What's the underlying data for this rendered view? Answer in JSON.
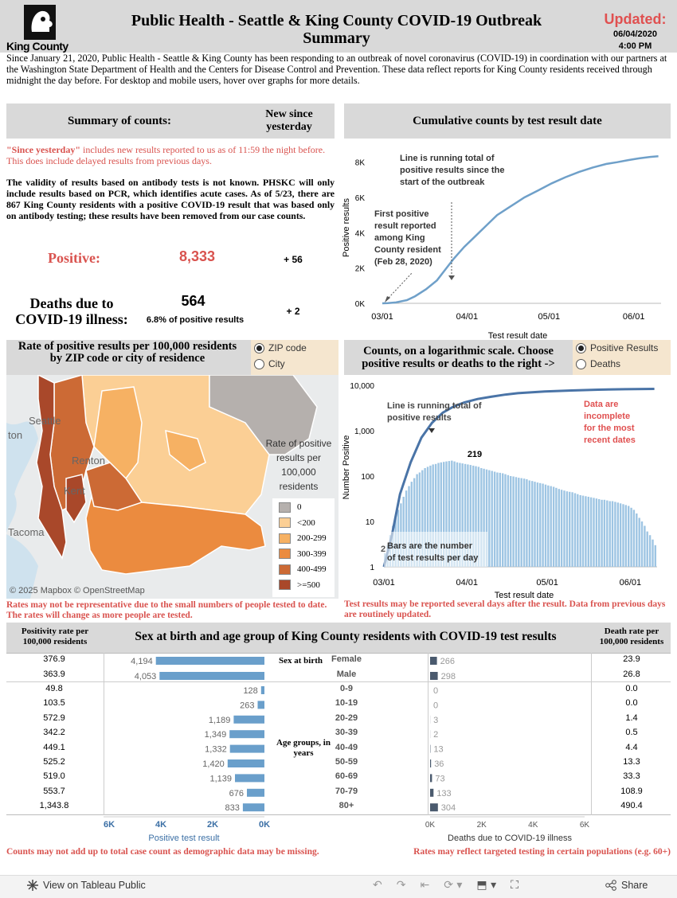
{
  "header": {
    "logo_text": "King County",
    "title": "Public Health - Seattle & King County COVID-19 Outbreak Summary",
    "updated_label": "Updated:",
    "updated_date": "06/04/2020",
    "updated_time": "4:00 PM",
    "intro": "Since January 21, 2020, Public Health - Seattle & King County has been responding to an outbreak of novel coronavirus (COVID-19) in coordination with our partners at the Washington State Department of Health and the Centers for Disease Control and Prevention. These data reflect reports for King County residents received through midnight the day before. For desktop and mobile users, hover over graphs for more details."
  },
  "summary": {
    "title": "Summary of counts:",
    "new_since": "New since yesterday",
    "note_red": "\"Since yesterday\" includes new results reported to us as of 11:59 the night before. This does include delayed results from previous days.",
    "note_red_bold": "\"Since yesterday\"",
    "note_red_rest": " includes new results reported to us as of 11:59 the night before. This does include delayed results from previous days.",
    "note_bold": "The validity of results based on antibody tests is not known. PHSKC will only include results based on PCR, which identifies acute cases. As of 5/23, there are 867 King County residents with a positive COVID-19 result that was based only on antibody testing; these results have been removed from our case counts.",
    "positive_label": "Positive:",
    "positive_value": "8,333",
    "positive_new": "+ 56",
    "deaths_label": "Deaths due to COVID-19 illness:",
    "deaths_value": "564",
    "deaths_pct": "6.8% of positive results",
    "deaths_new": "+ 2"
  },
  "cumulative": {
    "title": "Cumulative counts by test result date",
    "annotation1": "Line is running total of positive results since the start of the outbreak",
    "annotation2": "First positive result reported among King County resident (Feb 28, 2020)"
  },
  "map": {
    "title": "Rate of positive results per 100,000 residents by ZIP code or city of residence",
    "radio_zip": "ZIP code",
    "radio_city": "City",
    "legend_title": "Rate of positive results per 100,000 residents",
    "legend": [
      {
        "label": "0",
        "color": "#b5b0ad"
      },
      {
        "label": "<200",
        "color": "#fbcf95"
      },
      {
        "label": "200-299",
        "color": "#f6b163"
      },
      {
        "label": "300-399",
        "color": "#eb8b3f"
      },
      {
        "label": "400-499",
        "color": "#cc6a35"
      },
      {
        "label": ">=500",
        "color": "#a9482a"
      }
    ],
    "place_ton": "ton",
    "place_seattle": "Seattle",
    "place_renton": "Renton",
    "place_kent": "Kent",
    "place_tacoma": "Tacoma",
    "attribution": "© 2025 Mapbox © OpenStreetMap",
    "note": "Rates may not be representative due to the small numbers of people tested to date. The rates will change as more people are tested."
  },
  "log_chart": {
    "title": "Counts, on a logarithmic scale. Choose positive results or deaths to the right ->",
    "radio_positive": "Positive Results",
    "radio_deaths": "Deaths",
    "annotation_line": "Line is running total of positive results",
    "annotation_bars": "Bars are the number of test results per day",
    "annotation_incomplete": "Data are incomplete for the most recent dates",
    "peak_label": "219",
    "small_label": "2",
    "note": "Test results may be reported several days after the result. Data from previous days are routinely updated."
  },
  "demographics": {
    "left_header": "Positivity rate per 100,000 residents",
    "title": "Sex at birth and age group of King County residents with COVID-19 test results",
    "right_header": "Death rate per 100,000 residents",
    "sex_group_label": "Sex at birth",
    "age_group_label": "Age groups, in years",
    "pos_axis_title": "Positive test result",
    "death_axis_title": "Deaths due to COVID-19 illness",
    "pos_ticks": [
      "6K",
      "4K",
      "2K",
      "0K"
    ],
    "death_ticks": [
      "0K",
      "2K",
      "4K",
      "6K"
    ],
    "note_left": "Counts may not add up to total case count as demographic data may be missing.",
    "note_right": "Rates may reflect targeted testing in certain populations (e.g. 60+)"
  },
  "chart_data": [
    {
      "type": "line",
      "title": "Cumulative counts by test result date",
      "xlabel": "Test result date",
      "ylabel": "Positive results",
      "x_ticks": [
        "03/01",
        "04/01",
        "05/01",
        "06/01"
      ],
      "y_ticks": [
        "0K",
        "2K",
        "4K",
        "6K",
        "8K"
      ],
      "ylim": [
        0,
        8800
      ],
      "x_day_range": [
        0,
        102
      ],
      "series": [
        {
          "name": "Positive results (cumulative)",
          "x_days": [
            0,
            2,
            5,
            9,
            12,
            16,
            20,
            23,
            26,
            30,
            34,
            38,
            42,
            47,
            52,
            57,
            62,
            67,
            72,
            77,
            82,
            86,
            90,
            94,
            98,
            101
          ],
          "values": [
            0,
            10,
            50,
            180,
            400,
            800,
            1300,
            1900,
            2500,
            3200,
            3800,
            4400,
            5000,
            5500,
            6000,
            6400,
            6800,
            7150,
            7450,
            7700,
            7900,
            8000,
            8120,
            8220,
            8300,
            8333
          ]
        }
      ]
    },
    {
      "type": "bar",
      "title": "Counts, on a logarithmic scale",
      "xlabel": "Test result date",
      "ylabel": "Number Positive",
      "scale": "log",
      "x_ticks": [
        "03/01",
        "04/01",
        "05/01",
        "06/01"
      ],
      "y_ticks": [
        "1",
        "10",
        "100",
        "1,000",
        "10,000"
      ],
      "ylim": [
        1,
        10000
      ],
      "x_day_range": [
        0,
        102
      ],
      "bar_values": [
        2,
        3,
        5,
        8,
        12,
        18,
        25,
        35,
        48,
        60,
        75,
        90,
        110,
        120,
        135,
        150,
        160,
        170,
        180,
        185,
        195,
        200,
        205,
        210,
        215,
        219,
        210,
        200,
        195,
        190,
        185,
        180,
        175,
        170,
        165,
        160,
        150,
        145,
        140,
        135,
        130,
        125,
        120,
        118,
        115,
        110,
        105,
        100,
        98,
        95,
        92,
        90,
        88,
        85,
        80,
        78,
        75,
        72,
        70,
        68,
        65,
        62,
        60,
        58,
        55,
        52,
        50,
        48,
        46,
        45,
        44,
        42,
        40,
        38,
        37,
        36,
        35,
        34,
        33,
        32,
        31,
        30,
        30,
        29,
        28,
        28,
        27,
        26,
        25,
        24,
        23,
        22,
        20,
        18,
        15,
        12,
        10,
        8,
        6,
        5,
        4,
        3
      ],
      "line_x_days": [
        0,
        3,
        6,
        10,
        14,
        18,
        22,
        26,
        30,
        35,
        40,
        45,
        50,
        60,
        70,
        80,
        90,
        101
      ],
      "line_values": [
        1,
        5,
        40,
        200,
        700,
        1500,
        2500,
        3400,
        4200,
        5000,
        5600,
        6200,
        6700,
        7300,
        7700,
        8000,
        8200,
        8333
      ]
    },
    {
      "type": "bar",
      "title": "Positive test result by sex and age group",
      "categories": [
        "Female",
        "Male",
        "0-9",
        "10-19",
        "20-29",
        "30-39",
        "40-49",
        "50-59",
        "60-69",
        "70-79",
        "80+"
      ],
      "values": [
        4194,
        4053,
        128,
        263,
        1189,
        1349,
        1332,
        1420,
        1139,
        676,
        833
      ],
      "labels": [
        "4,194",
        "4,053",
        "128",
        "263",
        "1,189",
        "1,349",
        "1,332",
        "1,420",
        "1,139",
        "676",
        "833"
      ],
      "xlim": [
        0,
        6000
      ]
    },
    {
      "type": "bar",
      "title": "Deaths due to COVID-19 illness by sex and age group",
      "categories": [
        "Female",
        "Male",
        "0-9",
        "10-19",
        "20-29",
        "30-39",
        "40-49",
        "50-59",
        "60-69",
        "70-79",
        "80+"
      ],
      "values": [
        266,
        298,
        0,
        0,
        3,
        2,
        13,
        36,
        73,
        133,
        304
      ],
      "xlim": [
        0,
        6000
      ]
    },
    {
      "type": "table",
      "title": "Positivity rate per 100,000 residents",
      "categories": [
        "Female",
        "Male",
        "0-9",
        "10-19",
        "20-29",
        "30-39",
        "40-49",
        "50-59",
        "60-69",
        "70-79",
        "80+"
      ],
      "values": [
        "376.9",
        "363.9",
        "49.8",
        "103.5",
        "572.9",
        "342.2",
        "449.1",
        "525.2",
        "519.0",
        "553.7",
        "1,343.8"
      ]
    },
    {
      "type": "table",
      "title": "Death rate per 100,000 residents",
      "categories": [
        "Female",
        "Male",
        "0-9",
        "10-19",
        "20-29",
        "30-39",
        "40-49",
        "50-59",
        "60-69",
        "70-79",
        "80+"
      ],
      "values": [
        "23.9",
        "26.8",
        "0.0",
        "0.0",
        "1.4",
        "0.5",
        "4.4",
        "13.3",
        "33.3",
        "108.9",
        "490.4"
      ]
    }
  ],
  "footer": {
    "view_link": "View on Tableau Public",
    "share": "Share"
  }
}
